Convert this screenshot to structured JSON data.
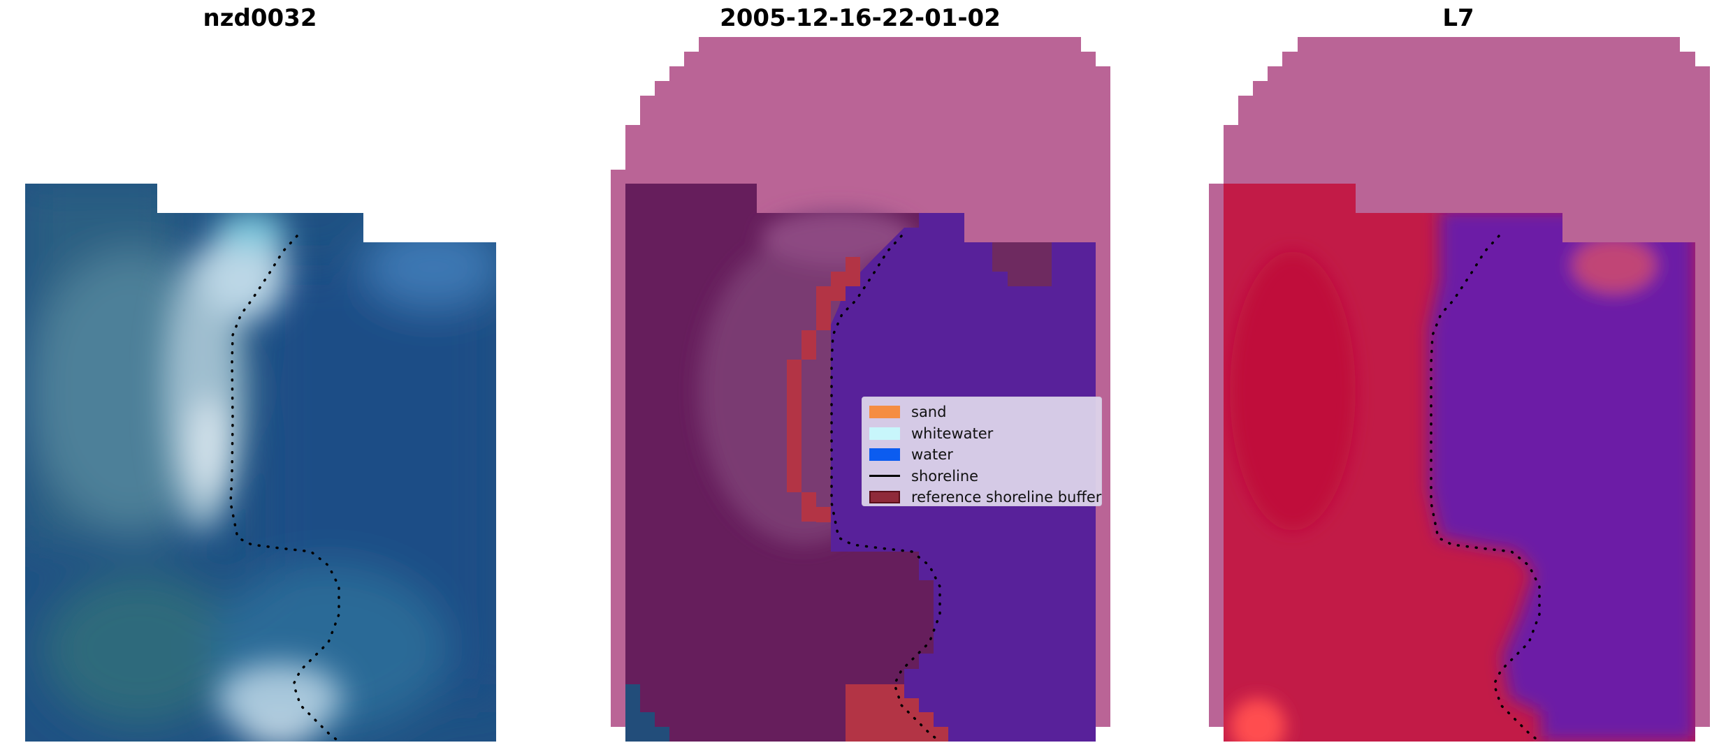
{
  "titles": {
    "panel1": "nzd0032",
    "panel2": "2005-12-16-22-01-02",
    "panel3": "L7"
  },
  "legend": [
    {
      "label": "sand",
      "color": "#f58d42",
      "kind": "patch",
      "edge": "#f58d42"
    },
    {
      "label": "whitewater",
      "color": "#c8f6fb",
      "kind": "patch",
      "edge": "#c8f6fb"
    },
    {
      "label": "water",
      "color": "#0b5cf0",
      "kind": "patch",
      "edge": "#0b5cf0"
    },
    {
      "label": "shoreline",
      "color": "#000000",
      "kind": "line",
      "edge": "#000000"
    },
    {
      "label": "reference shoreline buffer",
      "color": "#8f2a3a",
      "kind": "patch",
      "edge": "#5a0f1a"
    }
  ],
  "colors": {
    "mask_magenta": "#ba6496",
    "classified_land": "#661e5c",
    "classified_water": "#58219a",
    "buffer_red": "#b33445",
    "index_red": "#c21b47",
    "index_purple": "#6c1ca6",
    "satellite_deep": "#1f4e82",
    "satellite_bright": "#dfe8ef",
    "shoreline": "#000000"
  }
}
